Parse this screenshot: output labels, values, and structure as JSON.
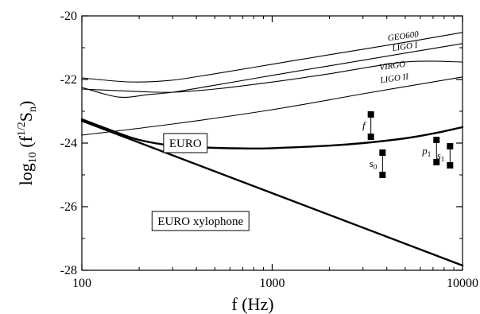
{
  "chart_data": {
    "type": "line",
    "xlabel": "f (Hz)",
    "ylabel": "log10 (f1/2Sn)",
    "ylabel_parts": {
      "base": "log",
      "sub": "10",
      "open": " (f",
      "sup": "1/2",
      "s": "S",
      "n": "n",
      "close": ")"
    },
    "xscale": "log",
    "xlim": [
      100,
      10000
    ],
    "ylim": [
      -28,
      -20
    ],
    "x_ticks": [
      100,
      1000,
      10000
    ],
    "x_tick_labels": [
      "100",
      "1000",
      "10000"
    ],
    "y_ticks": [
      -28,
      -26,
      -24,
      -22,
      -20
    ],
    "y_tick_labels": [
      "-28",
      "-26",
      "-24",
      "-22",
      "-20"
    ],
    "grid": false,
    "series": [
      {
        "name": "GEO600",
        "style": "thin",
        "points": [
          [
            100,
            -21.95
          ],
          [
            150,
            -22.05
          ],
          [
            200,
            -22.08
          ],
          [
            300,
            -22.02
          ],
          [
            500,
            -21.82
          ],
          [
            1000,
            -21.52
          ],
          [
            2000,
            -21.22
          ],
          [
            5000,
            -20.83
          ],
          [
            10000,
            -20.52
          ]
        ]
      },
      {
        "name": "LIGO I",
        "style": "thin",
        "points": [
          [
            100,
            -22.25
          ],
          [
            140,
            -22.5
          ],
          [
            170,
            -22.56
          ],
          [
            220,
            -22.48
          ],
          [
            300,
            -22.4
          ],
          [
            500,
            -22.18
          ],
          [
            1000,
            -21.87
          ],
          [
            2000,
            -21.57
          ],
          [
            5000,
            -21.17
          ],
          [
            10000,
            -20.87
          ]
        ]
      },
      {
        "name": "VIRGO",
        "style": "thin",
        "points": [
          [
            100,
            -22.3
          ],
          [
            200,
            -22.38
          ],
          [
            300,
            -22.4
          ],
          [
            500,
            -22.3
          ],
          [
            1000,
            -22.08
          ],
          [
            2000,
            -21.82
          ],
          [
            5000,
            -21.45
          ],
          [
            10000,
            -21.45
          ]
        ]
      },
      {
        "name": "LIGO II",
        "style": "thin",
        "points": [
          [
            100,
            -23.75
          ],
          [
            300,
            -23.4
          ],
          [
            1000,
            -22.95
          ],
          [
            3000,
            -22.45
          ],
          [
            10000,
            -21.92
          ]
        ]
      },
      {
        "name": "EURO",
        "style": "thick",
        "points": [
          [
            100,
            -23.25
          ],
          [
            150,
            -23.65
          ],
          [
            200,
            -23.9
          ],
          [
            300,
            -24.08
          ],
          [
            500,
            -24.15
          ],
          [
            800,
            -24.17
          ],
          [
            1000,
            -24.16
          ],
          [
            2000,
            -24.08
          ],
          [
            3000,
            -24.0
          ],
          [
            5000,
            -23.85
          ],
          [
            7000,
            -23.7
          ],
          [
            10000,
            -23.5
          ]
        ]
      },
      {
        "name": "EURO xylophone",
        "style": "thick",
        "points": [
          [
            100,
            -23.3
          ],
          [
            10000,
            -27.85
          ]
        ]
      }
    ],
    "annotations": {
      "detector_labels": [
        {
          "text": "GEO600",
          "x": 4900,
          "y": -20.72
        },
        {
          "text": "LIGO I",
          "x": 5000,
          "y": -21.05
        },
        {
          "text": "VIRGO",
          "x": 4300,
          "y": -21.65
        },
        {
          "text": "LIGO II",
          "x": 4400,
          "y": -22.05
        }
      ],
      "boxes": [
        {
          "text": "EURO",
          "x": 350,
          "y": -24.0
        },
        {
          "text": "EURO xylophone",
          "x": 420,
          "y": -26.45
        }
      ],
      "modes": [
        {
          "label": "f",
          "x": 3300,
          "y_top": -23.1,
          "y_bottom": -23.8
        },
        {
          "label": "s",
          "sub": "0",
          "x": 3800,
          "y_top": -24.3,
          "y_bottom": -25.0
        },
        {
          "label": "p",
          "sub": "1",
          "x": 7300,
          "y_top": -23.9,
          "y_bottom": -24.6
        },
        {
          "label": "s",
          "sub": "1",
          "x": 8600,
          "y_top": -24.1,
          "y_bottom": -24.7
        }
      ]
    }
  }
}
